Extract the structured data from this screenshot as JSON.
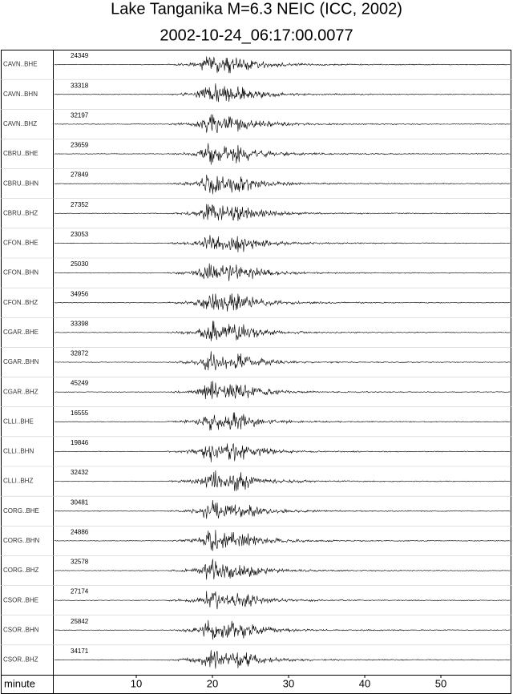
{
  "chart_data": {
    "type": "seismogram",
    "title": "Lake Tanganika M=6.3 NEIC (ICC, 2002)",
    "subtitle": "2002-10-24_06:17:00.0077",
    "x_label": "minute",
    "xlim": [
      -0.95,
      59.26
    ],
    "xticks": [
      10,
      20,
      30,
      40,
      50
    ],
    "traces": [
      "CAVN..BHE",
      "CAVN..BHN",
      "CAVN..BHZ",
      "CBRU..BHE",
      "CBRU..BHN",
      "CBRU..BHZ",
      "CFON..BHE",
      "CFON..BHN",
      "CFON..BHZ",
      "CGAR..BHE",
      "CGAR..BHN",
      "CGAR..BHZ",
      "CLLI..BHE",
      "CLLI..BHN",
      "CLLI..BHZ",
      "CORG..BHE",
      "CORG..BHN",
      "CORG..BHZ",
      "CSOR..BHE",
      "CSOR..BHN",
      "CSOR..BHZ"
    ],
    "amplitudes": [
      24349,
      33318,
      32197,
      23659,
      27849,
      27352,
      23053,
      25030,
      34956,
      33398,
      32872,
      45249,
      16555,
      19846,
      32432,
      30481,
      24886,
      32578,
      27174,
      25842,
      34171
    ],
    "color": "#000000"
  }
}
